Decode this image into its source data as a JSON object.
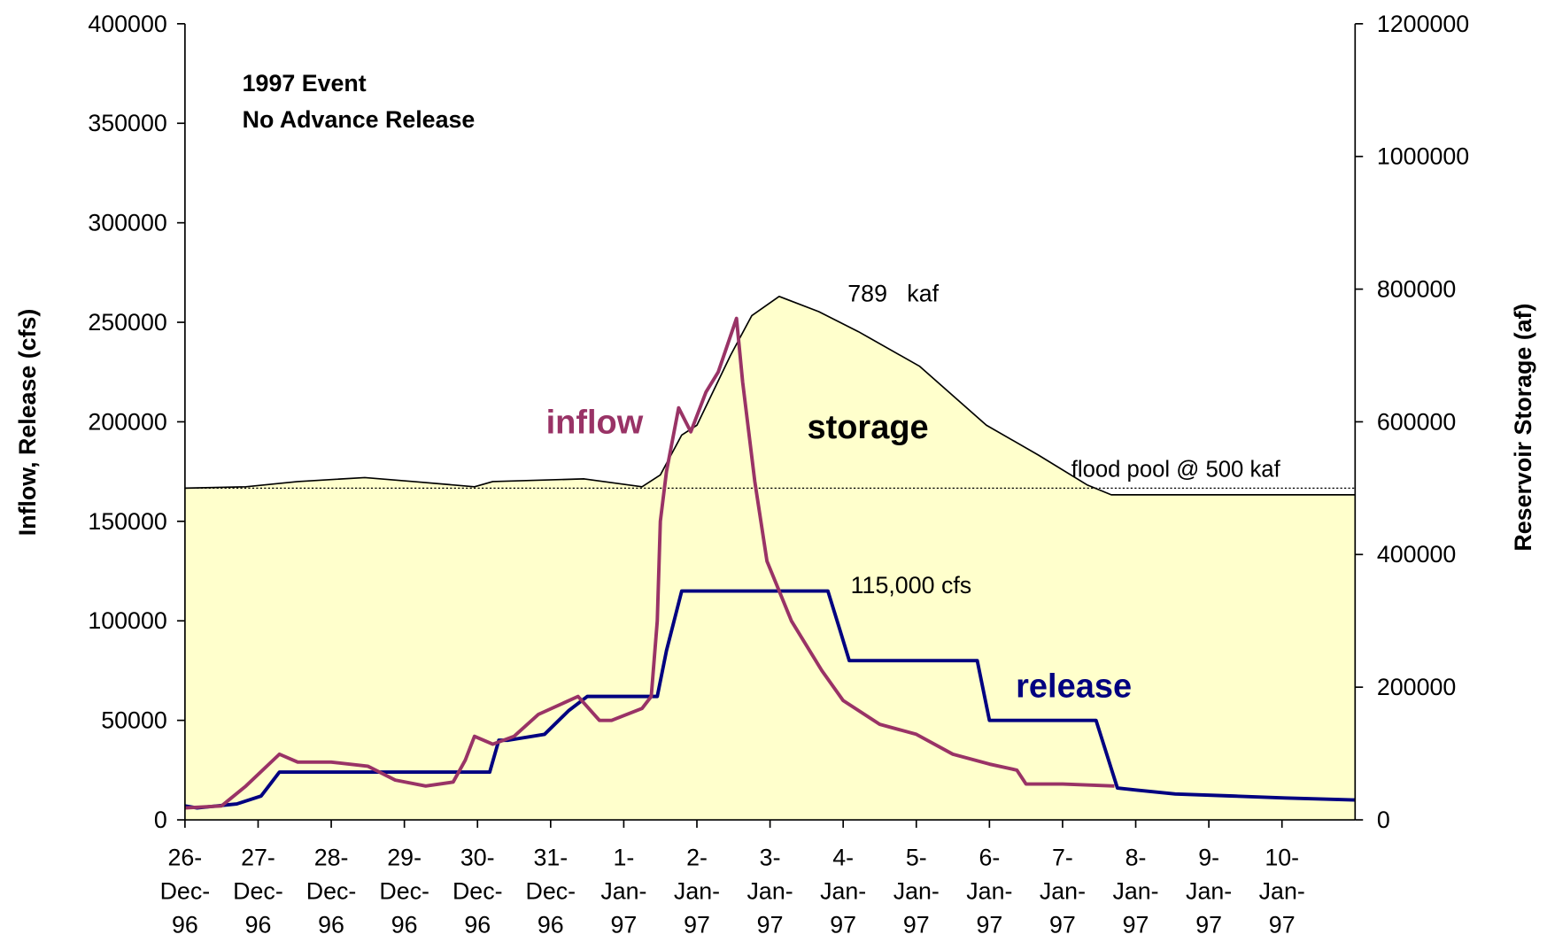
{
  "chart_data": {
    "type": "line",
    "annotations": [
      {
        "text": "1997 Event"
      },
      {
        "text": "No Advance Release"
      },
      {
        "text": "789   kaf"
      },
      {
        "text": "115,000 cfs"
      },
      {
        "text": "flood pool @ 500 kaf"
      },
      {
        "text": "inflow"
      },
      {
        "text": "storage"
      },
      {
        "text": "release"
      }
    ],
    "ylabel": "Inflow, Release (cfs)",
    "y2label": "Reservoir Storage (af)",
    "xlim": [
      "1996-12-26T00:00",
      "1997-01-11T00:00"
    ],
    "xticks": [
      {
        "value": "1996-12-26",
        "label": "26-Dec-96"
      },
      {
        "value": "1996-12-27",
        "label": "27-Dec-96"
      },
      {
        "value": "1996-12-28",
        "label": "28-Dec-96"
      },
      {
        "value": "1996-12-29",
        "label": "29-Dec-96"
      },
      {
        "value": "1996-12-30",
        "label": "30-Dec-96"
      },
      {
        "value": "1996-12-31",
        "label": "31-Dec-96"
      },
      {
        "value": "1997-01-01",
        "label": "1-Jan-97"
      },
      {
        "value": "1997-01-02",
        "label": "2-Jan-97"
      },
      {
        "value": "1997-01-03",
        "label": "3-Jan-97"
      },
      {
        "value": "1997-01-04",
        "label": "4-Jan-97"
      },
      {
        "value": "1997-01-05",
        "label": "5-Jan-97"
      },
      {
        "value": "1997-01-06",
        "label": "6-Jan-97"
      },
      {
        "value": "1997-01-07",
        "label": "7-Jan-97"
      },
      {
        "value": "1997-01-08",
        "label": "8-Jan-97"
      },
      {
        "value": "1997-01-09",
        "label": "9-Jan-97"
      },
      {
        "value": "1997-01-10",
        "label": "10-Jan-97"
      }
    ],
    "ylim": [
      0,
      400000
    ],
    "yticks": [
      0,
      50000,
      100000,
      150000,
      200000,
      250000,
      300000,
      350000,
      400000
    ],
    "y2lim": [
      0,
      1200000
    ],
    "y2ticks": [
      0,
      200000,
      400000,
      600000,
      800000,
      1000000,
      1200000
    ],
    "reference_lines": [
      {
        "value": 500000,
        "axis": "y2"
      }
    ],
    "series": [
      {
        "name": "storage",
        "axis": "y2",
        "color": "#000000",
        "fill": "#ffffcc",
        "x": [
          "1996-12-26T00:00",
          "1996-12-26T20:00",
          "1996-12-27T13:00",
          "1996-12-28T11:00",
          "1996-12-29T03:00",
          "1996-12-29T23:00",
          "1996-12-30T05:00",
          "1996-12-31T11:00",
          "1997-01-01T06:00",
          "1997-01-01T12:00",
          "1997-01-01T19:00",
          "1997-01-02T00:00",
          "1997-01-02T11:00",
          "1997-01-02T18:00",
          "1997-01-03T03:00",
          "1997-01-03T16:00",
          "1997-01-04T05:00",
          "1997-01-05T01:00",
          "1997-01-05T23:00",
          "1997-01-06T16:00",
          "1997-01-07T08:00",
          "1997-01-07T16:00",
          "1997-01-11T00:00"
        ],
        "values": [
          500000,
          502000,
          510000,
          516000,
          510000,
          502000,
          510000,
          514000,
          502000,
          520000,
          580000,
          595000,
          700000,
          760000,
          789000,
          766000,
          736000,
          684000,
          595000,
          550000,
          505000,
          490000,
          490000
        ]
      },
      {
        "name": "release",
        "color": "#000080",
        "x": [
          "1996-12-26T00:00",
          "1996-12-26T04:00",
          "1996-12-26T17:00",
          "1996-12-27T01:00",
          "1996-12-27T07:00",
          "1996-12-30T04:00",
          "1996-12-30T07:00",
          "1996-12-30T10:00",
          "1996-12-30T22:00",
          "1996-12-31T06:00",
          "1996-12-31T12:00",
          "1997-01-01T11:00",
          "1997-01-01T14:00",
          "1997-01-01T19:00",
          "1997-01-03T19:00",
          "1997-01-03T23:00",
          "1997-01-04T02:00",
          "1997-01-05T20:00",
          "1997-01-06T00:00",
          "1997-01-07T11:00",
          "1997-01-07T18:00",
          "1997-01-08T00:00",
          "1997-01-08T13:00",
          "1997-01-09T08:00",
          "1997-01-10T01:00",
          "1997-01-11T00:00"
        ],
        "values": [
          7000,
          6000,
          8000,
          12000,
          24000,
          24000,
          40000,
          40000,
          43000,
          55000,
          62000,
          62000,
          85000,
          115000,
          115000,
          95000,
          80000,
          80000,
          50000,
          50000,
          16000,
          15000,
          13000,
          12000,
          11000,
          10000
        ]
      },
      {
        "name": "inflow",
        "color": "#993366",
        "x": [
          "1996-12-26T00:00",
          "1996-12-26T12:00",
          "1996-12-26T20:00",
          "1996-12-27T07:00",
          "1996-12-27T13:00",
          "1996-12-28T00:00",
          "1996-12-28T12:00",
          "1996-12-28T21:00",
          "1996-12-29T07:00",
          "1996-12-29T16:00",
          "1996-12-29T20:00",
          "1996-12-29T23:00",
          "1996-12-30T05:00",
          "1996-12-30T12:00",
          "1996-12-30T20:00",
          "1996-12-31T09:00",
          "1996-12-31T16:00",
          "1996-12-31T20:00",
          "1997-01-01T06:00",
          "1997-01-01T09:00",
          "1997-01-01T11:00",
          "1997-01-01T12:00",
          "1997-01-01T14:00",
          "1997-01-01T18:00",
          "1997-01-01T22:00",
          "1997-01-02T03:00",
          "1997-01-02T07:00",
          "1997-01-02T13:00",
          "1997-01-02T15:00",
          "1997-01-02T19:00",
          "1997-01-02T23:00",
          "1997-01-03T07:00",
          "1997-01-03T17:00",
          "1997-01-04T00:00",
          "1997-01-04T12:00",
          "1997-01-05T00:00",
          "1997-01-05T12:00",
          "1997-01-06T00:00",
          "1997-01-06T09:00",
          "1997-01-06T12:00",
          "1997-01-07T00:00",
          "1997-01-07T17:00"
        ],
        "values": [
          6000,
          7000,
          17000,
          33000,
          29000,
          29000,
          27000,
          20000,
          17000,
          19000,
          30000,
          42000,
          38000,
          42000,
          53000,
          62000,
          50000,
          50000,
          56000,
          62000,
          100000,
          150000,
          175000,
          207000,
          195000,
          215000,
          225000,
          252000,
          220000,
          170000,
          130000,
          100000,
          75000,
          60000,
          48000,
          43000,
          33000,
          28000,
          25000,
          18000,
          18000,
          17000
        ]
      }
    ]
  }
}
